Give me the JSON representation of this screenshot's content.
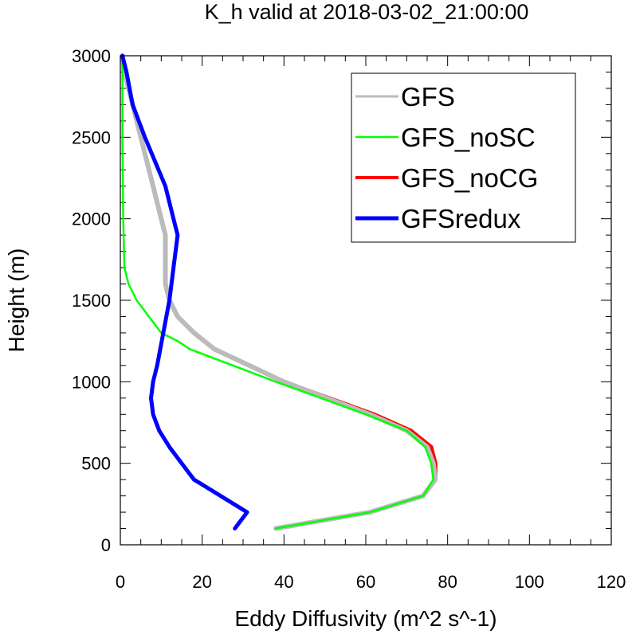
{
  "chart_data": {
    "type": "line",
    "title": "K_h valid at 2018-03-02_21:00:00",
    "xlabel": "Eddy Diffusivity (m^2 s^-1)",
    "ylabel": "Height (m)",
    "xlim": [
      0,
      120
    ],
    "ylim": [
      0,
      3000
    ],
    "xticks": [
      "0",
      "20",
      "40",
      "60",
      "80",
      "100",
      "120"
    ],
    "yticks": [
      "0",
      "500",
      "1000",
      "1500",
      "2000",
      "2500",
      "3000"
    ],
    "legend_position": "top-right",
    "series": [
      {
        "name": "GFS",
        "color": "#bbbbbb",
        "points": [
          [
            38,
            100
          ],
          [
            61,
            200
          ],
          [
            74,
            300
          ],
          [
            77,
            400
          ],
          [
            76.5,
            500
          ],
          [
            75,
            600
          ],
          [
            70,
            700
          ],
          [
            61,
            800
          ],
          [
            40,
            1000
          ],
          [
            23,
            1200
          ],
          [
            18,
            1300
          ],
          [
            14,
            1400
          ],
          [
            12,
            1500
          ],
          [
            11,
            1600
          ],
          [
            11,
            1700
          ],
          [
            11,
            1800
          ],
          [
            11,
            1900
          ],
          [
            10,
            2000
          ],
          [
            8,
            2200
          ],
          [
            5,
            2500
          ],
          [
            3,
            2700
          ],
          [
            1,
            2900
          ],
          [
            0.5,
            3000
          ]
        ]
      },
      {
        "name": "GFS_noSC",
        "color": "#00ff00",
        "points": [
          [
            38,
            100
          ],
          [
            61,
            200
          ],
          [
            74,
            300
          ],
          [
            76.5,
            400
          ],
          [
            76,
            500
          ],
          [
            74.5,
            600
          ],
          [
            70,
            700
          ],
          [
            60,
            800
          ],
          [
            38,
            1000
          ],
          [
            17,
            1200
          ],
          [
            14,
            1250
          ],
          [
            10,
            1300
          ],
          [
            7,
            1400
          ],
          [
            4,
            1500
          ],
          [
            2,
            1600
          ],
          [
            1,
            1700
          ],
          [
            0.7,
            2000
          ],
          [
            0.5,
            2500
          ],
          [
            0.5,
            3000
          ]
        ]
      },
      {
        "name": "GFS_noCG",
        "color": "#ff0000",
        "points": [
          [
            38,
            100
          ],
          [
            61,
            200
          ],
          [
            74,
            300
          ],
          [
            77,
            400
          ],
          [
            77,
            500
          ],
          [
            76,
            600
          ],
          [
            71,
            700
          ],
          [
            62,
            800
          ],
          [
            40,
            1000
          ],
          [
            23,
            1200
          ],
          [
            18,
            1300
          ],
          [
            14,
            1400
          ],
          [
            12,
            1500
          ],
          [
            11,
            1600
          ],
          [
            11,
            1700
          ],
          [
            11,
            1800
          ],
          [
            11,
            1900
          ],
          [
            10,
            2000
          ],
          [
            8,
            2200
          ],
          [
            5,
            2500
          ],
          [
            3,
            2700
          ],
          [
            1,
            2900
          ],
          [
            0.5,
            3000
          ]
        ]
      },
      {
        "name": "GFSredux",
        "color": "#0000ff",
        "points": [
          [
            28,
            100
          ],
          [
            31,
            200
          ],
          [
            18,
            400
          ],
          [
            15,
            500
          ],
          [
            12,
            600
          ],
          [
            9.5,
            700
          ],
          [
            8,
            800
          ],
          [
            7.5,
            900
          ],
          [
            8,
            1000
          ],
          [
            9,
            1100
          ],
          [
            10.5,
            1300
          ],
          [
            12,
            1500
          ],
          [
            13,
            1700
          ],
          [
            14,
            1900
          ],
          [
            13,
            2000
          ],
          [
            11,
            2200
          ],
          [
            6,
            2500
          ],
          [
            3,
            2700
          ],
          [
            1.5,
            2900
          ],
          [
            0.5,
            3000
          ]
        ]
      }
    ]
  }
}
